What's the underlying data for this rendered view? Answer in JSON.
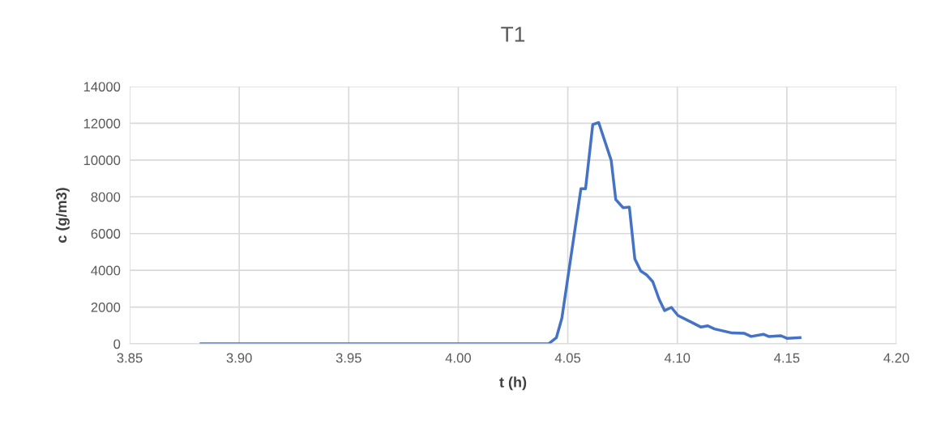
{
  "chart_data": {
    "type": "line",
    "title": "T1",
    "xlabel": "t (h)",
    "ylabel": "c (g/m3)",
    "x": [
      3.8826,
      4.0412,
      4.0448,
      4.0473,
      4.056,
      4.0581,
      4.0614,
      4.0641,
      4.0698,
      4.0719,
      4.0752,
      4.0781,
      4.0806,
      4.0833,
      4.0861,
      4.0888,
      4.0917,
      4.0942,
      4.0973,
      4.1003,
      4.1065,
      4.1108,
      4.1139,
      4.117,
      4.125,
      4.1306,
      4.1337,
      4.1393,
      4.1417,
      4.1473,
      4.15,
      4.156
    ],
    "series": [
      {
        "color": "#4472c4",
        "values": [
          0,
          0,
          340,
          1400,
          8440,
          8440,
          11940,
          12040,
          9990,
          7850,
          7410,
          7440,
          4620,
          3960,
          3740,
          3380,
          2420,
          1810,
          1980,
          1540,
          1170,
          910,
          980,
          810,
          590,
          570,
          400,
          520,
          400,
          440,
          300,
          340
        ]
      }
    ],
    "xlim": [
      3.85,
      4.2
    ],
    "xticks": [
      {
        "value": 3.85,
        "label": "3.85"
      },
      {
        "value": 3.9,
        "label": "3.90"
      },
      {
        "value": 3.95,
        "label": "3.95"
      },
      {
        "value": 4.0,
        "label": "4.00"
      },
      {
        "value": 4.05,
        "label": "4.05"
      },
      {
        "value": 4.1,
        "label": "4.10"
      },
      {
        "value": 4.15,
        "label": "4.15"
      },
      {
        "value": 4.2,
        "label": "4.20"
      }
    ],
    "ylim": [
      0,
      14000
    ],
    "yticks": [
      0,
      2000,
      4000,
      6000,
      8000,
      10000,
      12000,
      14000
    ],
    "grid": true,
    "legend": false,
    "marker": "none",
    "line_style": "solid"
  }
}
